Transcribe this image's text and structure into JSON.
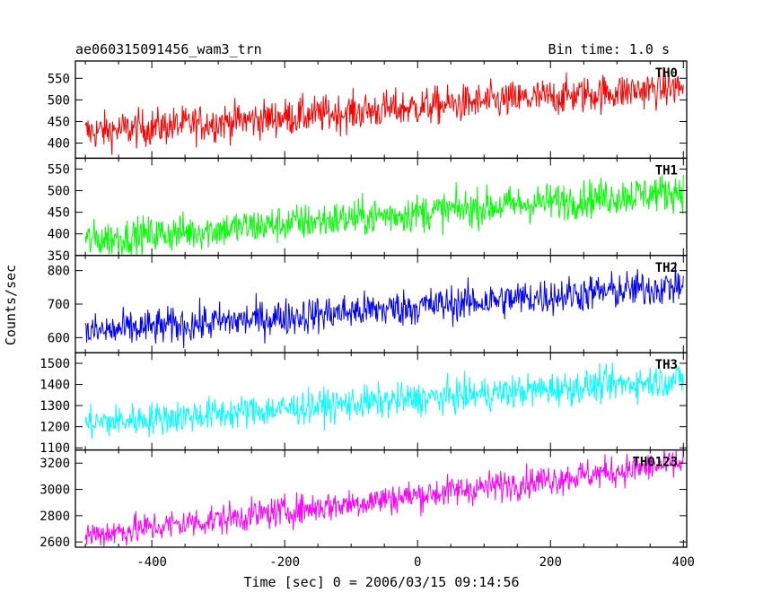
{
  "header": {
    "title": "ae060315091456_wam3_trn",
    "bin_time": "Bin time: 1.0 s"
  },
  "chart_data": {
    "type": "line",
    "title": "ae060315091456_wam3_trn",
    "xlabel": "Time [sec] 0 = 2006/03/15 09:14:56",
    "ylabel": "Counts/sec",
    "xlim": [
      -515,
      405
    ],
    "x_ticks": [
      -400,
      -200,
      0,
      200,
      400
    ],
    "x_range": [
      -500,
      400
    ],
    "bin_time_s": 1.0,
    "grid": false,
    "legend": "none",
    "panels": [
      {
        "name": "TH0",
        "color": "#ff0000",
        "ylim": [
          365,
          590
        ],
        "y_ticks": [
          400,
          450,
          500,
          550
        ],
        "trend_start": 425,
        "trend_end": 530,
        "noise": 22
      },
      {
        "name": "TH1",
        "color": "#00ff00",
        "ylim": [
          350,
          575
        ],
        "y_ticks": [
          350,
          400,
          450,
          500,
          550
        ],
        "trend_start": 385,
        "trend_end": 500,
        "noise": 22
      },
      {
        "name": "TH2",
        "color": "#0000ff",
        "ylim": [
          555,
          845
        ],
        "y_ticks": [
          600,
          700,
          800
        ],
        "trend_start": 615,
        "trend_end": 755,
        "noise": 28
      },
      {
        "name": "TH3",
        "color": "#00ffff",
        "ylim": [
          1090,
          1550
        ],
        "y_ticks": [
          1100,
          1200,
          1300,
          1400,
          1500
        ],
        "trend_start": 1215,
        "trend_end": 1425,
        "noise": 40
      },
      {
        "name": "TH0123",
        "color": "#ff00ff",
        "ylim": [
          2560,
          3300
        ],
        "y_ticks": [
          2600,
          2800,
          3000,
          3200
        ],
        "trend_start": 2650,
        "trend_end": 3200,
        "noise": 60
      }
    ]
  }
}
